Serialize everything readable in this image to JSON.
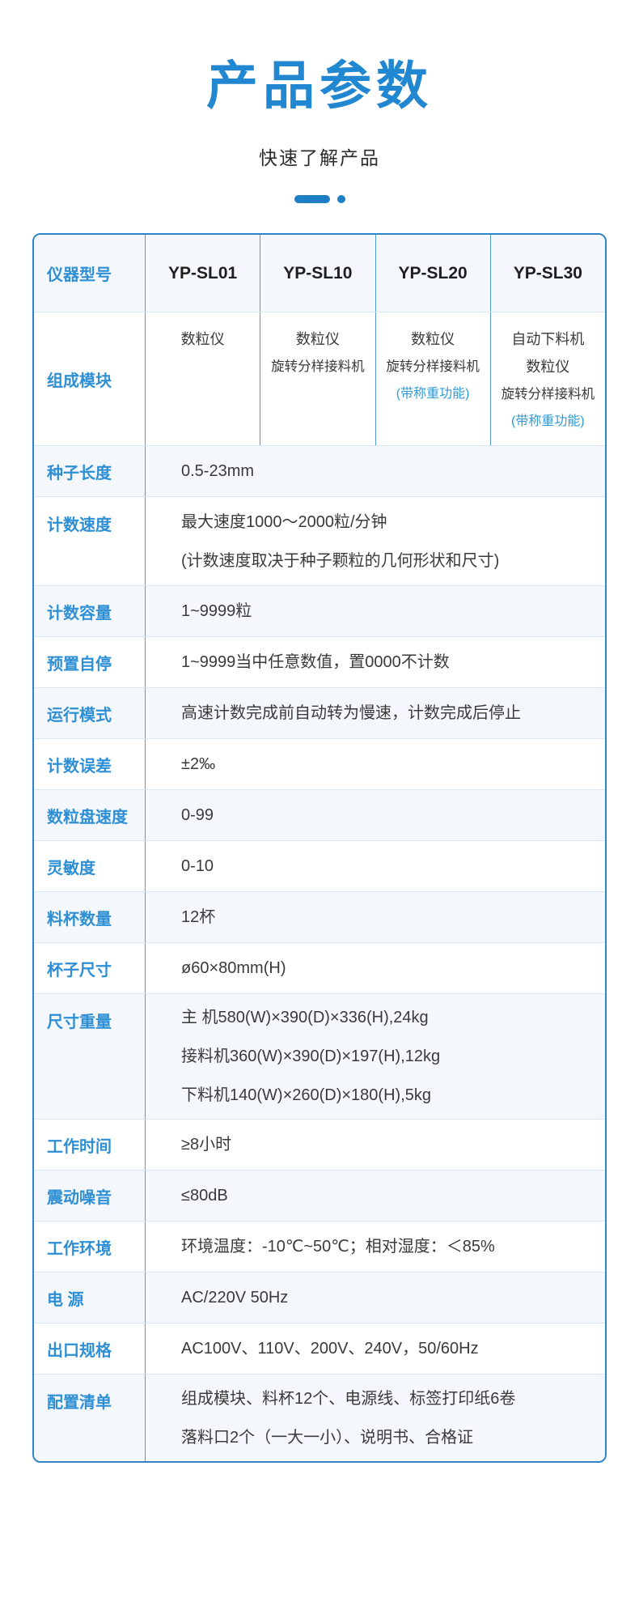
{
  "page": {
    "title": "产品参数",
    "subtitle": "快速了解产品"
  },
  "colors": {
    "accent_blue": "#2187D0",
    "label_blue": "#2E8FD5",
    "table_border": "#2E86C8",
    "divider_blue": "#4D9BD0",
    "row_light_bg": "#F4F8FC",
    "row_white_bg": "#FFFFFF",
    "body_text": "#3A3A3A"
  },
  "table": {
    "header": {
      "label": "仪器型号",
      "models": [
        "YP-SL01",
        "YP-SL10",
        "YP-SL20",
        "YP-SL30"
      ]
    },
    "modules_row": {
      "label": "组成模块",
      "columns": [
        {
          "lines": [
            "数粒仪"
          ]
        },
        {
          "lines": [
            "数粒仪",
            "旋转分样接料机"
          ]
        },
        {
          "lines": [
            "数粒仪",
            "旋转分样接料机",
            "(带称重功能)"
          ]
        },
        {
          "lines": [
            "自动下料机",
            "数粒仪",
            "旋转分样接料机",
            "(带称重功能)"
          ]
        }
      ]
    },
    "rows": [
      {
        "label": "种子长度",
        "lines": [
          "0.5-23mm"
        ]
      },
      {
        "label": "计数速度",
        "lines": [
          "最大速度1000～2000粒/分钟",
          "(计数速度取决于种子颗粒的几何形状和尺寸)"
        ]
      },
      {
        "label": "计数容量",
        "lines": [
          "1~9999粒"
        ]
      },
      {
        "label": "预置自停",
        "lines": [
          "1~9999当中任意数值，置0000不计数"
        ]
      },
      {
        "label": "运行模式",
        "lines": [
          "高速计数完成前自动转为慢速，计数完成后停止"
        ]
      },
      {
        "label": "计数误差",
        "lines": [
          "±2‰"
        ]
      },
      {
        "label": "数粒盘速度",
        "lines": [
          "0-99"
        ]
      },
      {
        "label": "灵敏度",
        "lines": [
          "0-10"
        ]
      },
      {
        "label": "料杯数量",
        "lines": [
          "12杯"
        ]
      },
      {
        "label": "杯子尺寸",
        "lines": [
          "ø60×80mm(H)"
        ]
      },
      {
        "label": "尺寸重量",
        "lines": [
          "主 机580(W)×390(D)×336(H),24kg",
          "接料机360(W)×390(D)×197(H),12kg",
          "下料机140(W)×260(D)×180(H),5kg"
        ]
      },
      {
        "label": "工作时间",
        "lines": [
          "≥8小时"
        ]
      },
      {
        "label": "震动噪音",
        "lines": [
          "≤80dB"
        ]
      },
      {
        "label": "工作环境",
        "lines": [
          "环境温度：-10℃~50℃；相对湿度：＜85%"
        ]
      },
      {
        "label": "电 源",
        "lines": [
          "AC/220V  50Hz"
        ]
      },
      {
        "label": "出口规格",
        "lines": [
          "AC100V、110V、200V、240V，50/60Hz"
        ]
      },
      {
        "label": "配置清单",
        "lines": [
          "组成模块、料杯12个、电源线、标签打印纸6卷",
          "落料口2个（一大一小）、说明书、合格证"
        ]
      }
    ]
  }
}
